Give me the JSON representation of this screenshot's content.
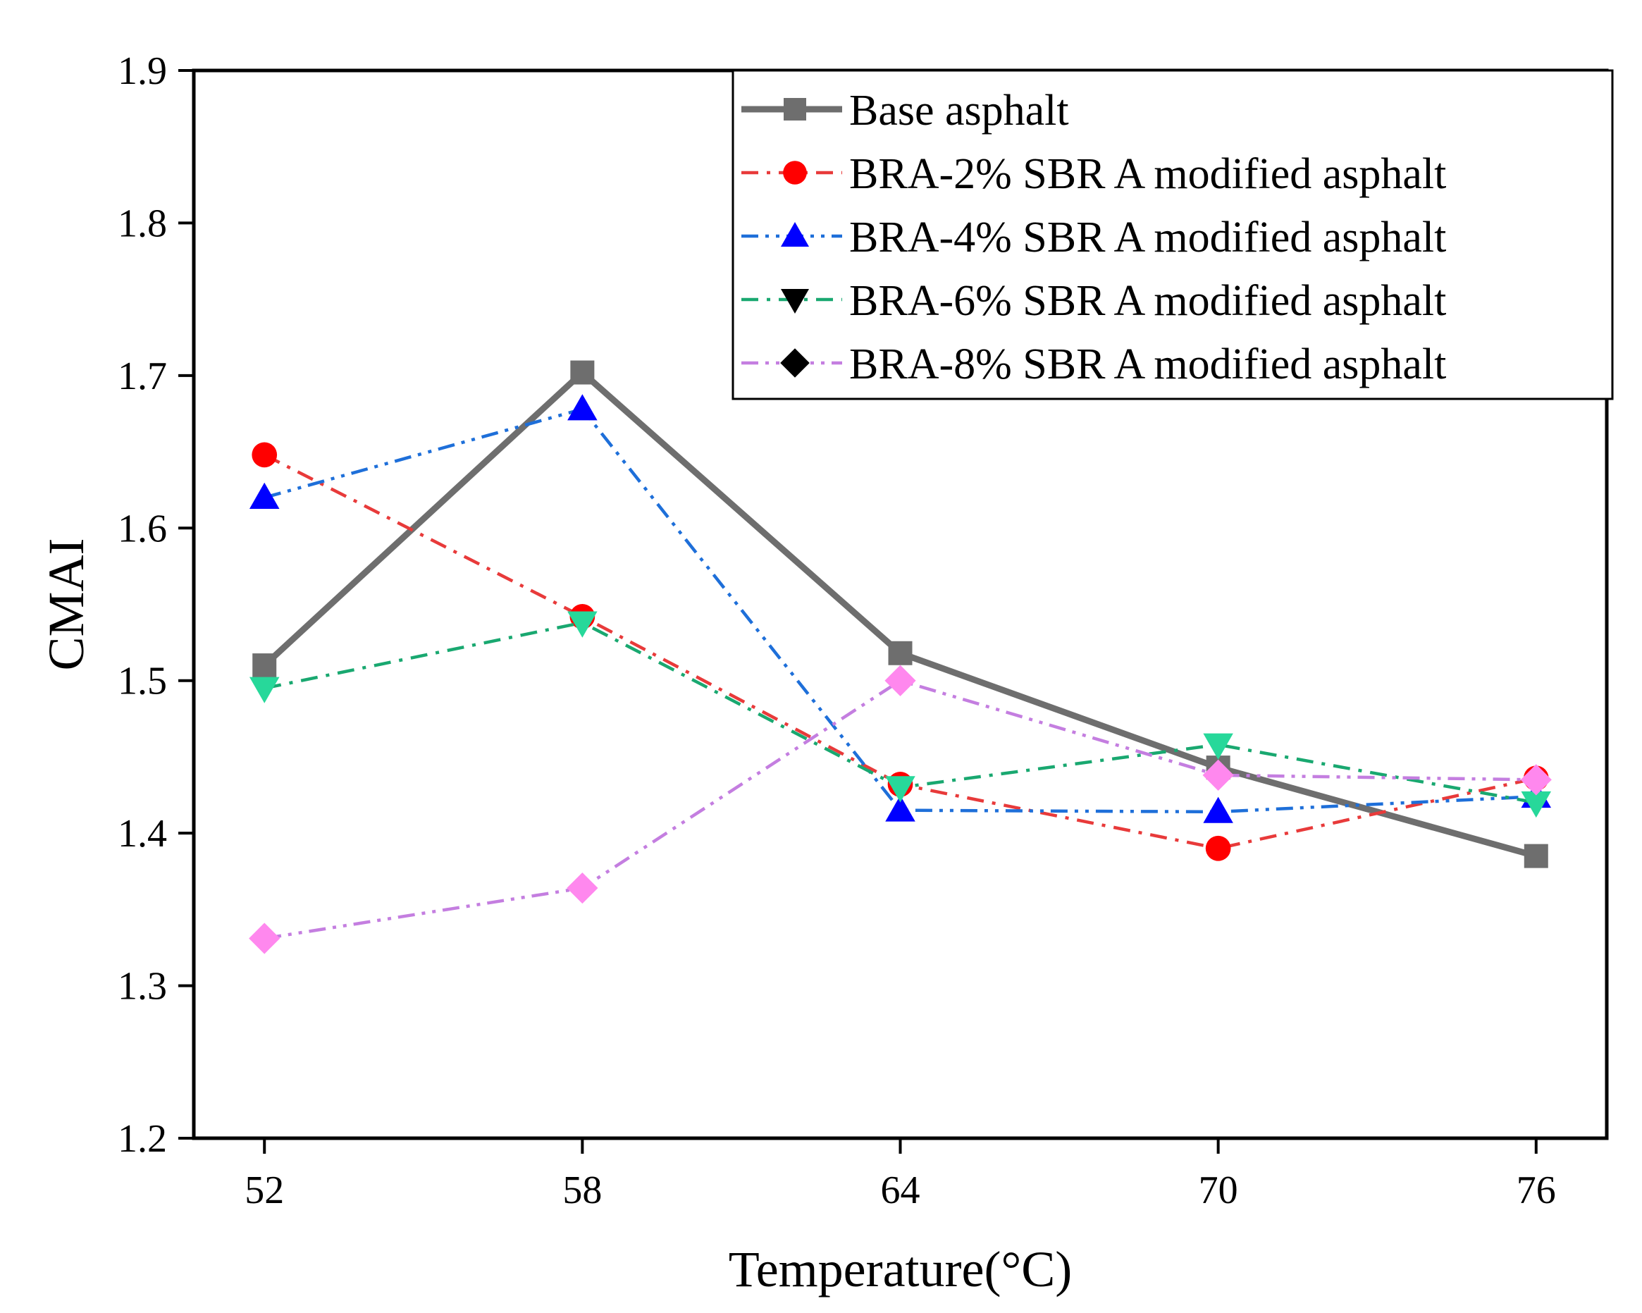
{
  "chart_data": {
    "type": "line",
    "xlabel": "Temperature(°C)",
    "ylabel": "CMAI",
    "x": [
      52,
      58,
      64,
      70,
      76
    ],
    "xticks": [
      "52",
      "58",
      "64",
      "70",
      "76"
    ],
    "yticks": [
      "1.2",
      "1.3",
      "1.4",
      "1.5",
      "1.6",
      "1.7",
      "1.8",
      "1.9"
    ],
    "ylim": [
      1.2,
      1.9
    ],
    "grid": false,
    "legend_position": "top-right",
    "series": [
      {
        "name": "Base asphalt",
        "values": [
          1.51,
          1.702,
          1.518,
          1.443,
          1.385
        ],
        "line_color": "#6e6e6e",
        "marker_color": "#6e6e6e",
        "legend_marker_color": "#6e6e6e",
        "marker": "square",
        "dash": "solid"
      },
      {
        "name": "BRA-2% SBR A modified asphalt",
        "values": [
          1.648,
          1.542,
          1.432,
          1.39,
          1.436
        ],
        "line_color": "#e83a3a",
        "marker_color": "#ff0000",
        "legend_marker_color": "#ff0000",
        "marker": "circle",
        "dash": "dashdot"
      },
      {
        "name": "BRA-4% SBR A modified asphalt",
        "values": [
          1.62,
          1.678,
          1.415,
          1.414,
          1.424
        ],
        "line_color": "#1e6fd9",
        "marker_color": "#0000ff",
        "legend_marker_color": "#0000ff",
        "marker": "triangle-up",
        "dash": "dashdotdot"
      },
      {
        "name": "BRA-6% SBR A modified asphalt",
        "values": [
          1.495,
          1.538,
          1.43,
          1.458,
          1.42
        ],
        "line_color": "#19a870",
        "marker_color": "#27d89a",
        "legend_marker_color": "#000000",
        "marker": "triangle-down",
        "dash": "dashdot"
      },
      {
        "name": "BRA-8% SBR A modified asphalt",
        "values": [
          1.331,
          1.364,
          1.5,
          1.438,
          1.435
        ],
        "line_color": "#c47ee0",
        "marker_color": "#ff88ee",
        "legend_marker_color": "#000000",
        "marker": "diamond",
        "dash": "dashdotdot"
      }
    ]
  }
}
